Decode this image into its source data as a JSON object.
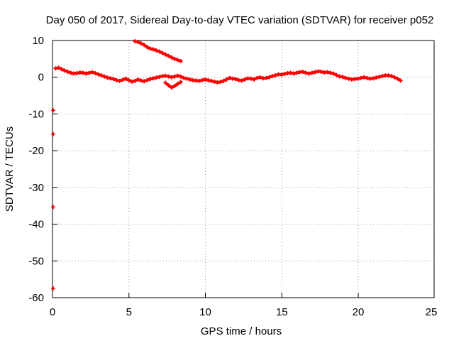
{
  "chart_data": {
    "type": "scatter",
    "title": "Day 050 of 2017, Sidereal Day-to-day VTEC variation (SDTVAR) for receiver p052",
    "xlabel": "GPS time / hours",
    "ylabel": "SDTVAR / TECUs",
    "xlim": [
      0,
      25
    ],
    "ylim": [
      -60,
      10
    ],
    "xticks": [
      0,
      5,
      10,
      15,
      20,
      25
    ],
    "xtick_labels": [
      "0",
      "5",
      "10",
      "15",
      "20",
      "25"
    ],
    "yticks": [
      -60,
      -50,
      -40,
      -30,
      -20,
      -10,
      0,
      10
    ],
    "ytick_labels": [
      "-60",
      "-50",
      "-40",
      "-30",
      "-20",
      "-10",
      "0",
      "10"
    ],
    "grid": true,
    "series": [
      {
        "name": "SDTVAR",
        "color": "#ff0000",
        "marker": "plus",
        "segments": [
          {
            "x": [
              0.2,
              0.4,
              0.6,
              0.8,
              1.0,
              1.2,
              1.4,
              1.6,
              1.8,
              2.0,
              2.2,
              2.4,
              2.6,
              2.8,
              3.0,
              3.2,
              3.4,
              3.6,
              3.8,
              4.0,
              4.2,
              4.4,
              4.6,
              4.8,
              5.0,
              5.2,
              5.4,
              5.6,
              5.8,
              6.0,
              6.2,
              6.4,
              6.6,
              6.8,
              7.0,
              7.2,
              7.4,
              7.6,
              7.8,
              8.0,
              8.2,
              8.4,
              8.6,
              8.8,
              9.0,
              9.2,
              9.4,
              9.6,
              9.8,
              10.0,
              10.2,
              10.4,
              10.6,
              10.8,
              11.0,
              11.2,
              11.4,
              11.6,
              11.8,
              12.0,
              12.2,
              12.4,
              12.6,
              12.8,
              13.0,
              13.2,
              13.4,
              13.6,
              13.8,
              14.0,
              14.2,
              14.4,
              14.6,
              14.8,
              15.0,
              15.2,
              15.4,
              15.6,
              15.8,
              16.0,
              16.2,
              16.4,
              16.6,
              16.8,
              17.0,
              17.2,
              17.4,
              17.6,
              17.8,
              18.0,
              18.2,
              18.4,
              18.6,
              18.8,
              19.0,
              19.2,
              19.4,
              19.6,
              19.8,
              20.0,
              20.2,
              20.4,
              20.6,
              20.8,
              21.0,
              21.2,
              21.4,
              21.6,
              21.8,
              22.0,
              22.2,
              22.4,
              22.6,
              22.8
            ],
            "y": [
              2.4,
              2.6,
              2.2,
              1.8,
              1.5,
              1.2,
              1.0,
              1.1,
              1.3,
              1.2,
              1.0,
              1.2,
              1.4,
              1.1,
              0.8,
              0.5,
              0.2,
              -0.1,
              -0.3,
              -0.5,
              -0.8,
              -1.0,
              -0.7,
              -0.4,
              -0.8,
              -1.2,
              -1.0,
              -0.6,
              -0.9,
              -1.1,
              -0.8,
              -0.5,
              -0.3,
              -0.1,
              0.1,
              0.3,
              0.4,
              0.2,
              0.0,
              0.2,
              0.4,
              0.2,
              -0.2,
              -0.4,
              -0.6,
              -0.8,
              -0.9,
              -1.0,
              -0.8,
              -0.6,
              -0.8,
              -1.0,
              -1.2,
              -1.4,
              -1.3,
              -1.0,
              -0.6,
              -0.2,
              -0.4,
              -0.5,
              -0.8,
              -0.9,
              -0.6,
              -0.3,
              -0.4,
              -0.6,
              -0.2,
              0.0,
              -0.3,
              -0.2,
              0.0,
              0.3,
              0.5,
              0.8,
              0.7,
              0.9,
              1.1,
              1.2,
              1.0,
              1.2,
              1.4,
              1.5,
              1.2,
              1.0,
              1.2,
              1.4,
              1.6,
              1.5,
              1.3,
              1.4,
              1.2,
              1.0,
              0.6,
              0.2,
              0.1,
              -0.2,
              -0.4,
              -0.6,
              -0.5,
              -0.4,
              -0.2,
              0.0,
              -0.2,
              -0.4,
              -0.3,
              -0.1,
              0.1,
              0.3,
              0.5,
              0.5,
              0.3,
              0.0,
              -0.4,
              -0.9
            ]
          },
          {
            "x": [
              5.4,
              5.6,
              5.8,
              6.0,
              6.2,
              6.4,
              6.6,
              6.8,
              7.0,
              7.2,
              7.4,
              7.6,
              7.8,
              8.0,
              8.2,
              8.4
            ],
            "y": [
              9.8,
              9.6,
              9.2,
              8.8,
              8.2,
              7.8,
              7.6,
              7.3,
              7.0,
              6.6,
              6.2,
              5.8,
              5.4,
              5.0,
              4.7,
              4.4
            ]
          },
          {
            "x": [
              7.4,
              7.6,
              7.8,
              8.0,
              8.2,
              8.4
            ],
            "y": [
              -1.5,
              -2.2,
              -2.8,
              -2.4,
              -1.8,
              -1.3
            ]
          },
          {
            "x": [
              0.05
            ],
            "y": [
              -9.0
            ]
          },
          {
            "x": [
              0.05
            ],
            "y": [
              -15.5
            ]
          },
          {
            "x": [
              0.05
            ],
            "y": [
              -35.3
            ]
          },
          {
            "x": [
              0.05
            ],
            "y": [
              -57.5
            ]
          }
        ]
      }
    ]
  }
}
